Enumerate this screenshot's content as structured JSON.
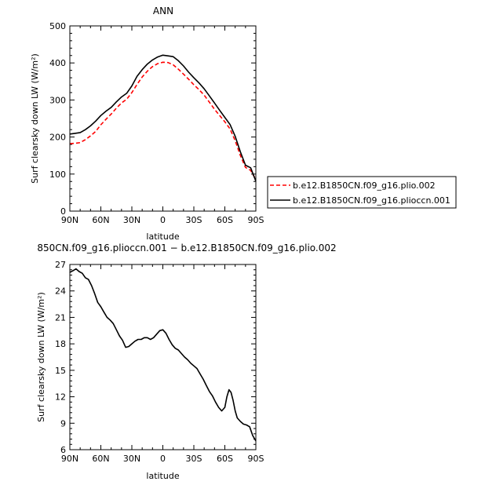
{
  "chart_data": [
    {
      "type": "line",
      "title": "ANN",
      "xlabel": "latitude",
      "ylabel": "Surf clearsky down LW (W/m²)",
      "xlim": [
        90,
        -90
      ],
      "ylim": [
        0,
        500
      ],
      "xticks": [
        90,
        60,
        30,
        0,
        -30,
        -60,
        -90
      ],
      "xtick_labels": [
        "90N",
        "60N",
        "30N",
        "0",
        "30S",
        "60S",
        "90S"
      ],
      "yticks": [
        0,
        100,
        200,
        300,
        400,
        500
      ],
      "ytick_labels": [
        "0",
        "100",
        "200",
        "300",
        "400",
        "500"
      ],
      "legend_position": "right",
      "series": [
        {
          "name": "b.e12.B1850CN.f09_g16.plio.002",
          "color": "#ff0000",
          "dash": "dashed",
          "x": [
            90,
            85,
            80,
            75,
            70,
            65,
            60,
            55,
            50,
            45,
            40,
            35,
            30,
            25,
            20,
            15,
            10,
            5,
            0,
            -5,
            -10,
            -15,
            -20,
            -25,
            -30,
            -35,
            -40,
            -45,
            -50,
            -55,
            -60,
            -65,
            -70,
            -75,
            -80,
            -85,
            -90
          ],
          "y": [
            182,
            183,
            185,
            193,
            203,
            215,
            233,
            248,
            262,
            278,
            292,
            302,
            320,
            342,
            362,
            378,
            390,
            398,
            402,
            401,
            395,
            383,
            370,
            356,
            341,
            328,
            313,
            294,
            275,
            258,
            241,
            222,
            190,
            150,
            118,
            110,
            85
          ]
        },
        {
          "name": "b.e12.B1850CN.f09_g16.pliocc​n.001",
          "color": "#000000",
          "dash": "solid",
          "x": [
            90,
            85,
            80,
            75,
            70,
            65,
            60,
            55,
            50,
            45,
            40,
            35,
            30,
            25,
            20,
            15,
            10,
            5,
            0,
            -5,
            -10,
            -15,
            -20,
            -25,
            -30,
            -35,
            -40,
            -45,
            -50,
            -55,
            -60,
            -65,
            -70,
            -75,
            -80,
            -85,
            -90
          ],
          "y": [
            208,
            210,
            212,
            220,
            230,
            243,
            258,
            270,
            280,
            295,
            308,
            318,
            338,
            364,
            382,
            397,
            408,
            416,
            421,
            419,
            417,
            406,
            392,
            375,
            360,
            346,
            330,
            311,
            292,
            272,
            253,
            234,
            202,
            160,
            124,
            117,
            81
          ]
        }
      ]
    },
    {
      "type": "line",
      "title": "850CN.f09_g16.plioccn.001 − b.e12.B1850CN.f09_g16.plio.002",
      "xlabel": "latitude",
      "ylabel": "Surf clearsky down LW (W/m²)",
      "xlim": [
        90,
        -90
      ],
      "ylim": [
        6,
        27
      ],
      "xticks": [
        90,
        60,
        30,
        0,
        -30,
        -60,
        -90
      ],
      "xtick_labels": [
        "90N",
        "60N",
        "30N",
        "0",
        "30S",
        "60S",
        "90S"
      ],
      "yticks": [
        6,
        9,
        12,
        15,
        18,
        21,
        24,
        27
      ],
      "ytick_labels": [
        "6",
        "9",
        "12",
        "15",
        "18",
        "21",
        "24",
        "27"
      ],
      "series": [
        {
          "color": "#000000",
          "dash": "solid",
          "x": [
            90,
            87,
            84,
            81,
            78,
            75,
            72,
            69,
            66,
            63,
            60,
            57,
            54,
            51,
            48,
            45,
            42,
            39,
            36,
            33,
            30,
            27,
            24,
            21,
            18,
            15,
            12,
            9,
            6,
            3,
            0,
            -3,
            -6,
            -9,
            -12,
            -15,
            -18,
            -21,
            -24,
            -27,
            -30,
            -33,
            -36,
            -39,
            -42,
            -45,
            -48,
            -51,
            -54,
            -57,
            -60,
            -62,
            -64,
            -66,
            -68,
            -70,
            -72,
            -75,
            -78,
            -81,
            -84,
            -87,
            -90
          ],
          "y": [
            26.1,
            26.3,
            26.5,
            26.2,
            26.0,
            25.5,
            25.3,
            24.6,
            23.7,
            22.7,
            22.2,
            21.6,
            21.0,
            20.7,
            20.3,
            19.6,
            18.9,
            18.4,
            17.6,
            17.7,
            18.0,
            18.3,
            18.5,
            18.5,
            18.7,
            18.7,
            18.5,
            18.7,
            19.1,
            19.5,
            19.6,
            19.2,
            18.5,
            17.9,
            17.5,
            17.3,
            16.9,
            16.5,
            16.2,
            15.8,
            15.5,
            15.2,
            14.6,
            14.0,
            13.3,
            12.6,
            12.1,
            11.4,
            10.8,
            10.4,
            10.8,
            12.0,
            12.8,
            12.5,
            11.6,
            10.4,
            9.6,
            9.2,
            8.9,
            8.8,
            8.6,
            7.6,
            7.0
          ]
        }
      ]
    }
  ]
}
